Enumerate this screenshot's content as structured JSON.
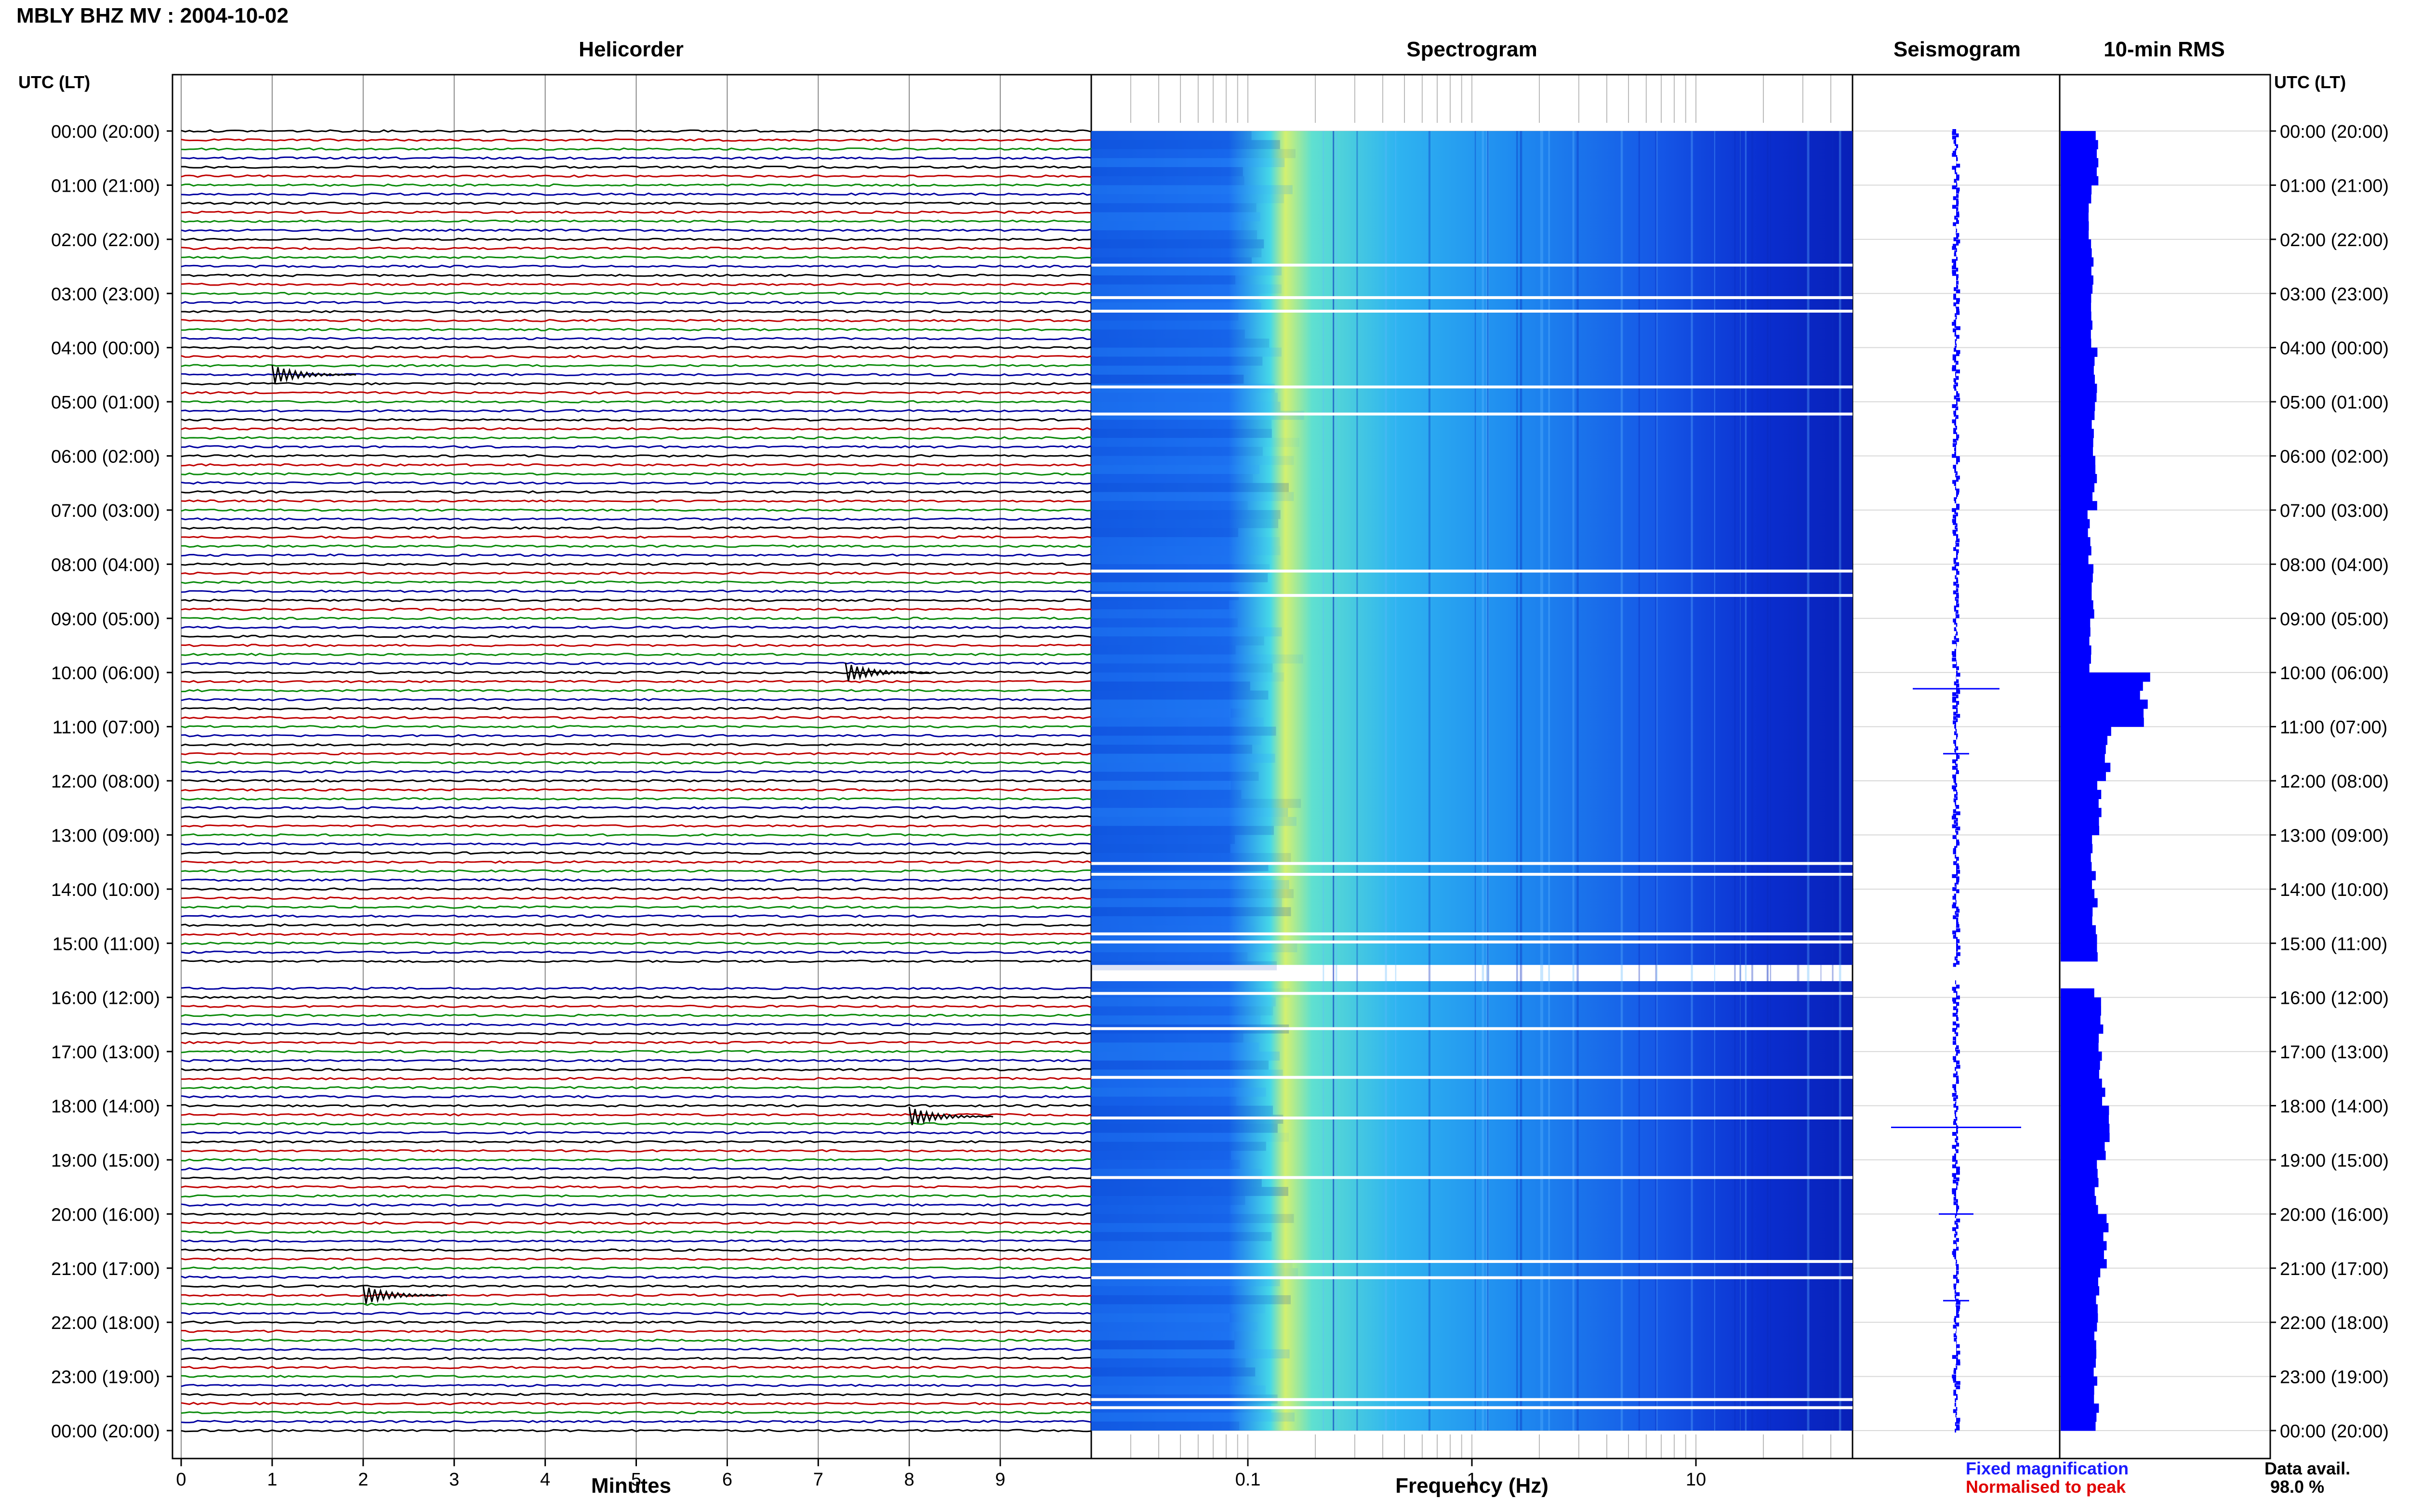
{
  "title": "MBLY BHZ MV : 2004-10-02",
  "panels": {
    "helicorder": "Helicorder",
    "spectrogram": "Spectrogram",
    "seismogram": "Seismogram",
    "rms": "10-min RMS"
  },
  "utc_header": "UTC (LT)",
  "axis_titles": {
    "helicorder": "Minutes",
    "spectrogram": "Frequency (Hz)"
  },
  "legend": {
    "fixed": "Fixed magnification",
    "normalised": "Normalised to peak"
  },
  "data_availability": {
    "label": "Data avail.",
    "value": "98.0 %"
  },
  "colors": {
    "helicorder_traces": [
      "#000000",
      "#c00000",
      "#0a8a0a",
      "#0000a0"
    ],
    "seismogram": "#0000ff",
    "rms": "#0000ff"
  },
  "chart_data": [
    {
      "type": "line",
      "name": "Helicorder",
      "xlabel": "Minutes",
      "x_ticks": [
        "0",
        "1",
        "2",
        "3",
        "4",
        "5",
        "6",
        "7",
        "8",
        "9"
      ],
      "xlim": [
        0,
        10
      ],
      "y_tick_labels": [
        "00:00 (20:00)",
        "01:00 (21:00)",
        "02:00 (22:00)",
        "03:00 (23:00)",
        "04:00 (00:00)",
        "05:00 (01:00)",
        "06:00 (02:00)",
        "07:00 (03:00)",
        "08:00 (04:00)",
        "09:00 (05:00)",
        "10:00 (06:00)",
        "11:00 (07:00)",
        "12:00 (08:00)",
        "13:00 (09:00)",
        "14:00 (10:00)",
        "15:00 (11:00)",
        "16:00 (12:00)",
        "17:00 (13:00)",
        "18:00 (14:00)",
        "19:00 (15:00)",
        "20:00 (16:00)",
        "21:00 (17:00)",
        "22:00 (18:00)",
        "23:00 (19:00)",
        "00:00 (20:00)"
      ],
      "traces_per_hour": 6,
      "hours": 24,
      "gap_hours": [
        15.4,
        15.7
      ],
      "events": [
        {
          "hour": 10.0,
          "minute": 7.3
        },
        {
          "hour": 18.2,
          "minute": 8.0
        },
        {
          "hour": 21.5,
          "minute": 2.0
        },
        {
          "hour": 4.5,
          "minute": 1.0
        }
      ]
    },
    {
      "type": "heatmap",
      "name": "Spectrogram",
      "xlabel": "Frequency (Hz)",
      "x_scale": "log",
      "xlim": [
        0.02,
        50
      ],
      "x_ticks": [
        "0.1",
        "1",
        "10"
      ],
      "dominant_band_hz": [
        0.15,
        0.25
      ],
      "gap_hours": [
        15.4,
        15.7
      ]
    },
    {
      "type": "line",
      "name": "Seismogram",
      "peaks": [
        {
          "hour": 10.3,
          "amplitude": 1.0
        },
        {
          "hour": 18.4,
          "amplitude": 1.5
        },
        {
          "hour": 20.0,
          "amplitude": 0.4
        },
        {
          "hour": 11.5,
          "amplitude": 0.3
        },
        {
          "hour": 21.6,
          "amplitude": 0.3
        }
      ]
    },
    {
      "type": "bar",
      "name": "10-min RMS",
      "orientation": "horizontal",
      "values_note": "relative",
      "hourly_values": [
        1.0,
        0.8,
        0.85,
        0.9,
        0.95,
        0.9,
        0.95,
        0.8,
        0.9,
        0.85,
        2.3,
        1.3,
        1.1,
        0.9,
        0.95,
        1.0,
        1.1,
        1.15,
        1.3,
        1.0,
        1.25,
        1.05,
        0.95,
        1.0,
        1.05
      ]
    }
  ]
}
